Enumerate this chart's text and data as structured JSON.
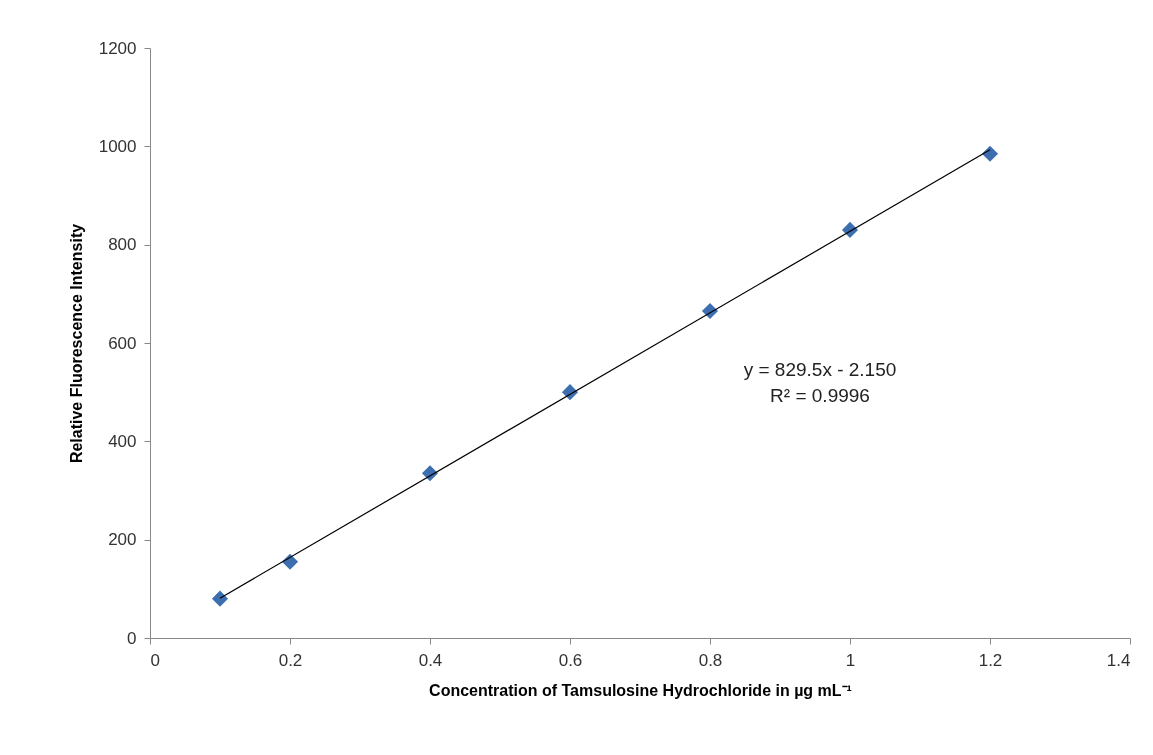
{
  "chart_data": {
    "type": "scatter",
    "xlabel": "Concentration of Tamsulosine Hydrochloride in µg mL⁻¹",
    "ylabel": "Relative Fluorescence Intensity",
    "x": [
      0.1,
      0.2,
      0.4,
      0.6,
      0.8,
      1.0,
      1.2
    ],
    "series": [
      {
        "color": "#3d6fb0",
        "values": [
          80,
          155,
          335,
          500,
          665,
          830,
          985
        ]
      },
      {
        "type": "line",
        "color": "#000000",
        "marker": "none",
        "x": [
          0.1,
          1.2
        ],
        "values": [
          81,
          993
        ]
      }
    ],
    "xlim": [
      0,
      1.4
    ],
    "xticks": [
      0,
      0.2,
      0.4,
      0.6,
      0.8,
      1,
      1.2,
      1.4
    ],
    "ylim": [
      0,
      1200
    ],
    "yticks": [
      0,
      200,
      400,
      600,
      800,
      1000,
      1200
    ],
    "marker": "diamond",
    "annotations": [
      "y = 829.5x - 2.150",
      "R² = 0.9996"
    ]
  }
}
